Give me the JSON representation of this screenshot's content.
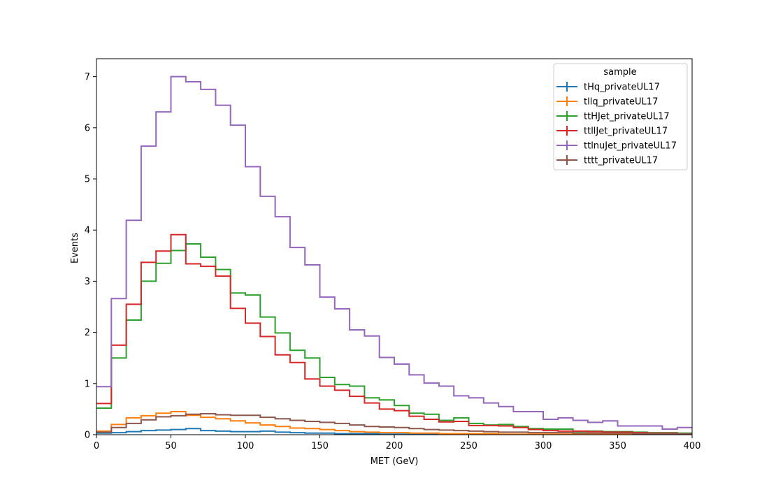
{
  "chart_data": {
    "type": "histogram-step",
    "xlabel": "MET (GeV)",
    "ylabel": "Events",
    "xlim": [
      0,
      400
    ],
    "ylim": [
      0,
      7.35
    ],
    "bin_edges": [
      0,
      10,
      20,
      30,
      40,
      50,
      60,
      70,
      80,
      90,
      100,
      110,
      120,
      130,
      140,
      150,
      160,
      170,
      180,
      190,
      200,
      210,
      220,
      230,
      240,
      250,
      260,
      270,
      280,
      290,
      300,
      310,
      320,
      330,
      340,
      350,
      360,
      370,
      380,
      390,
      400
    ],
    "x_ticks": [
      0,
      50,
      100,
      150,
      200,
      250,
      300,
      350,
      400
    ],
    "x_tick_labels": [
      "0",
      "50",
      "100",
      "150",
      "200",
      "250",
      "300",
      "350",
      "400"
    ],
    "y_ticks": [
      0,
      1,
      2,
      3,
      4,
      5,
      6,
      7
    ],
    "y_tick_labels": [
      "0",
      "1",
      "2",
      "3",
      "4",
      "5",
      "6",
      "7"
    ],
    "legend": {
      "title": "sample",
      "placement": "top-right"
    },
    "series": [
      {
        "name": "tHq_privateUL17",
        "color": "#1f77b4",
        "values": [
          0.03,
          0.04,
          0.06,
          0.08,
          0.09,
          0.1,
          0.12,
          0.08,
          0.07,
          0.06,
          0.06,
          0.07,
          0.05,
          0.04,
          0.03,
          0.03,
          0.02,
          0.02,
          0.02,
          0.01,
          0.01,
          0.01,
          0.01,
          0.01,
          0.01,
          0.01,
          0.0,
          0.0,
          0.0,
          0.0,
          0.0,
          0.0,
          0.0,
          0.0,
          0.0,
          0.0,
          0.0,
          0.0,
          0.0,
          0.0
        ]
      },
      {
        "name": "tllq_privateUL17",
        "color": "#ff7f0e",
        "values": [
          0.07,
          0.2,
          0.33,
          0.37,
          0.42,
          0.45,
          0.38,
          0.34,
          0.31,
          0.27,
          0.23,
          0.19,
          0.16,
          0.13,
          0.12,
          0.1,
          0.08,
          0.06,
          0.05,
          0.04,
          0.04,
          0.03,
          0.03,
          0.02,
          0.02,
          0.02,
          0.02,
          0.01,
          0.01,
          0.01,
          0.01,
          0.01,
          0.01,
          0.01,
          0.01,
          0.01,
          0.0,
          0.0,
          0.0,
          0.0
        ]
      },
      {
        "name": "ttHJet_privateUL17",
        "color": "#2ca02c",
        "values": [
          0.52,
          1.5,
          2.24,
          3.0,
          3.35,
          3.6,
          3.73,
          3.47,
          3.23,
          2.77,
          2.73,
          2.3,
          1.99,
          1.65,
          1.5,
          1.12,
          0.98,
          0.95,
          0.72,
          0.68,
          0.57,
          0.42,
          0.4,
          0.28,
          0.33,
          0.22,
          0.19,
          0.2,
          0.16,
          0.12,
          0.11,
          0.11,
          0.06,
          0.07,
          0.06,
          0.06,
          0.05,
          0.04,
          0.04,
          0.03
        ]
      },
      {
        "name": "ttllJet_privateUL17",
        "color": "#d62728",
        "values": [
          0.61,
          1.75,
          2.55,
          3.37,
          3.59,
          3.91,
          3.34,
          3.29,
          3.1,
          2.47,
          2.18,
          1.92,
          1.56,
          1.41,
          1.09,
          0.95,
          0.87,
          0.75,
          0.62,
          0.5,
          0.47,
          0.36,
          0.3,
          0.25,
          0.26,
          0.18,
          0.18,
          0.17,
          0.14,
          0.1,
          0.08,
          0.07,
          0.07,
          0.06,
          0.05,
          0.05,
          0.04,
          0.03,
          0.03,
          0.02
        ]
      },
      {
        "name": "ttlnuJet_privateUL17",
        "color": "#9467bd",
        "values": [
          0.94,
          2.66,
          4.19,
          5.64,
          6.31,
          7.0,
          6.9,
          6.75,
          6.44,
          6.05,
          5.24,
          4.66,
          4.26,
          3.66,
          3.32,
          2.69,
          2.46,
          2.05,
          1.93,
          1.51,
          1.38,
          1.17,
          1.01,
          0.95,
          0.76,
          0.72,
          0.62,
          0.55,
          0.45,
          0.45,
          0.3,
          0.33,
          0.28,
          0.24,
          0.27,
          0.17,
          0.17,
          0.17,
          0.11,
          0.14
        ]
      },
      {
        "name": "tttt_privateUL17",
        "color": "#8c564b",
        "values": [
          0.05,
          0.14,
          0.22,
          0.29,
          0.35,
          0.37,
          0.4,
          0.41,
          0.39,
          0.38,
          0.38,
          0.34,
          0.31,
          0.28,
          0.26,
          0.24,
          0.22,
          0.19,
          0.16,
          0.15,
          0.14,
          0.12,
          0.1,
          0.09,
          0.08,
          0.07,
          0.06,
          0.05,
          0.05,
          0.04,
          0.04,
          0.04,
          0.03,
          0.03,
          0.03,
          0.03,
          0.02,
          0.02,
          0.02,
          0.02
        ]
      }
    ]
  }
}
